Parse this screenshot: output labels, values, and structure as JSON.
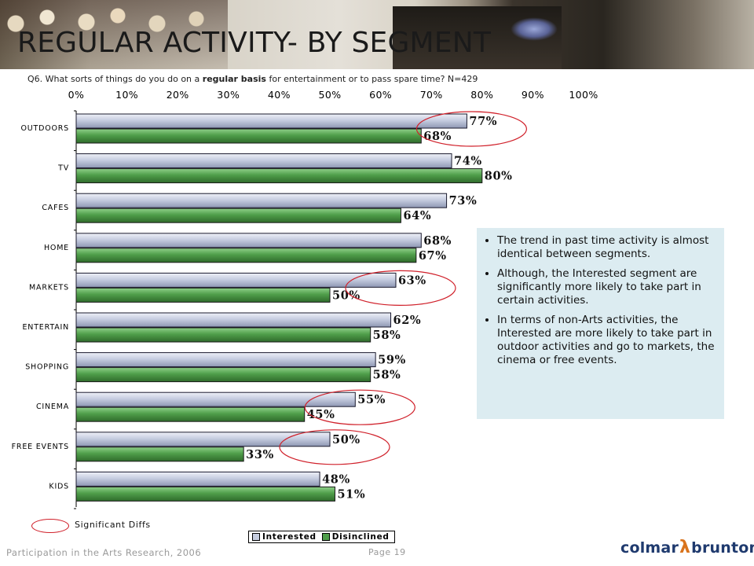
{
  "page": {
    "title": "REGULAR ACTIVITY-  BY SEGMENT",
    "question_prefix": "Q6. What sorts of things do you do on a ",
    "question_bold": "regular basis",
    "question_suffix": " for entertainment or to pass spare time? N=429"
  },
  "chart_data": {
    "type": "bar",
    "orientation": "horizontal",
    "categories": [
      "OUTDOORS",
      "TV",
      "CAFES",
      "HOME",
      "MARKETS",
      "ENTERTAIN",
      "SHOPPING",
      "CINEMA",
      "FREE EVENTS",
      "KIDS"
    ],
    "series": [
      {
        "name": "Interested",
        "values": [
          77,
          74,
          73,
          68,
          63,
          62,
          59,
          55,
          50,
          48
        ],
        "color": "#c6cde0"
      },
      {
        "name": "Disinclined",
        "values": [
          68,
          80,
          64,
          67,
          50,
          58,
          58,
          45,
          33,
          51
        ],
        "color": "#4f9e4a"
      }
    ],
    "tick_labels": [
      "0%",
      "10%",
      "20%",
      "30%",
      "40%",
      "50%",
      "60%",
      "70%",
      "80%",
      "90%",
      "100%"
    ],
    "data_labels": [
      [
        "77%",
        "74%",
        "73%",
        "68%",
        "63%",
        "62%",
        "59%",
        "55%",
        "50%",
        "48%"
      ],
      [
        "68%",
        "80%",
        "64%",
        "67%",
        "50%",
        "58%",
        "58%",
        "45%",
        "33%",
        "51%"
      ]
    ],
    "xlim": [
      0,
      100
    ],
    "axis_position": "top",
    "legend_position": "bottom",
    "significant_categories": [
      "OUTDOORS",
      "MARKETS",
      "CINEMA",
      "FREE EVENTS"
    ],
    "significant_color": "#d0202a"
  },
  "notes": {
    "bullets": [
      "The trend in past time activity is almost identical between segments.",
      "Although, the Interested segment are significantly more likely to take part in certain activities.",
      "In terms of non-Arts activities, the Interested are more likely to take part in outdoor activities and go to markets, the cinema or free events."
    ]
  },
  "legend": {
    "interested": "Interested",
    "disinclined": "Disinclined"
  },
  "significance_key": {
    "label": "Significant Diffs"
  },
  "footer": {
    "source": "Participation in the Arts Research, 2006",
    "page": "Page 19",
    "logo_left": "colmar",
    "logo_right": "brunton"
  }
}
